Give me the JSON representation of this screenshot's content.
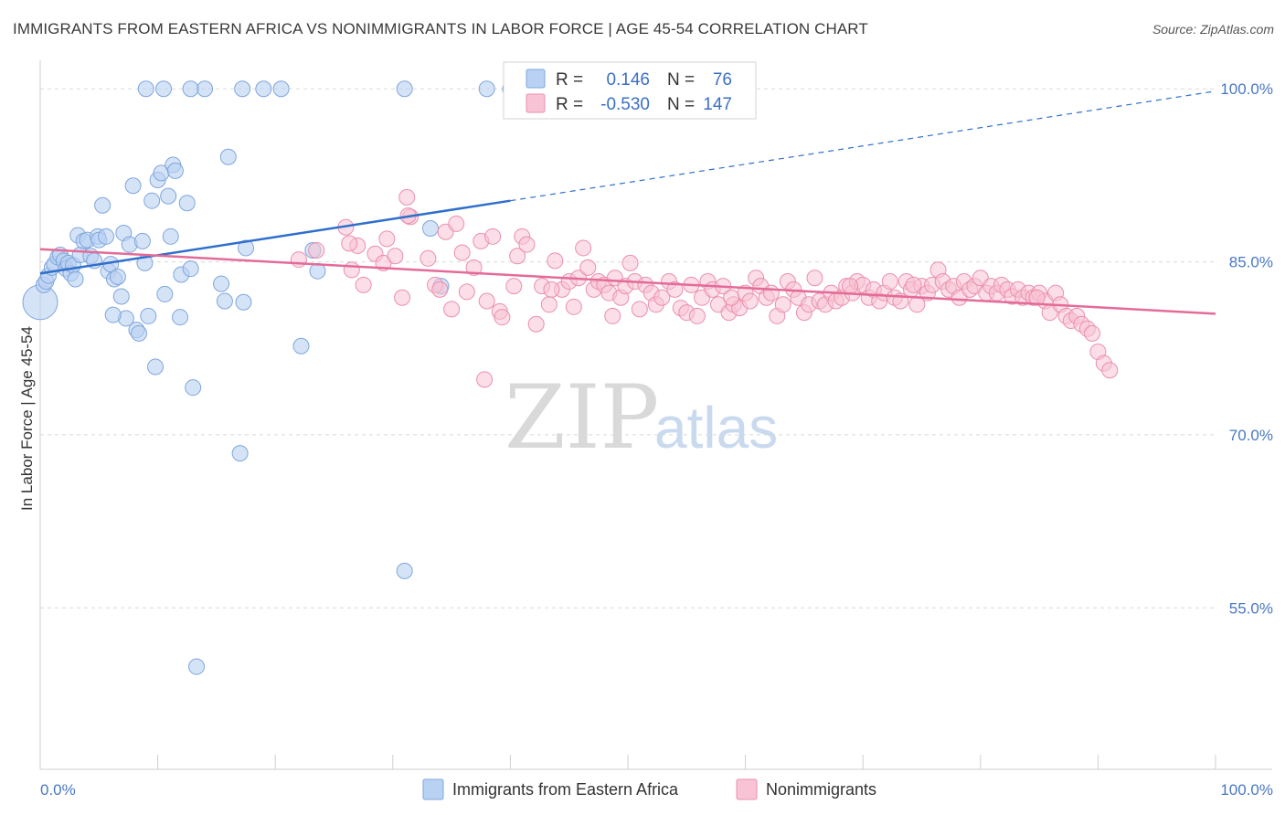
{
  "header": {
    "title": "IMMIGRANTS FROM EASTERN AFRICA VS NONIMMIGRANTS IN LABOR FORCE | AGE 45-54 CORRELATION CHART",
    "source": "Source: ZipAtlas.com"
  },
  "watermark": {
    "zip": "ZIP",
    "atlas": "atlas"
  },
  "colors": {
    "blue_fill": "#b9d1f2",
    "blue_stroke": "#7fa6dc",
    "blue_line": "#2f6fcc",
    "pink_fill": "#f8c3d4",
    "pink_stroke": "#eb8fae",
    "pink_line": "#e46b98",
    "grid": "#d9d9d9",
    "tick_label": "#4a78c2"
  },
  "legend": {
    "rows": [
      {
        "r_label": "R =",
        "r_value": "0.146",
        "n_label": "N =",
        "n_value": "76"
      },
      {
        "r_label": "R =",
        "r_value": "-0.530",
        "n_label": "N =",
        "n_value": "147"
      }
    ]
  },
  "bottom_legend": {
    "items": [
      {
        "label": "Immigrants from Eastern Africa"
      },
      {
        "label": "Nonimmigrants"
      }
    ]
  },
  "chart_data": {
    "type": "scatter",
    "title": "IMMIGRANTS FROM EASTERN AFRICA VS NONIMMIGRANTS IN LABOR FORCE | AGE 45-54 CORRELATION CHART",
    "xlabel": "",
    "ylabel": "In Labor Force | Age 45-54",
    "xlim": [
      0,
      100
    ],
    "ylim": [
      41,
      102
    ],
    "x_ticks": [
      0,
      100
    ],
    "x_tick_labels": [
      "0.0%",
      "100.0%"
    ],
    "y_ticks": [
      55,
      70,
      85,
      100
    ],
    "y_tick_labels": [
      "55.0%",
      "70.0%",
      "85.0%",
      "100.0%"
    ],
    "grid": true,
    "legend_position": "top-center",
    "series": [
      {
        "name": "Immigrants from Eastern Africa",
        "r": 0.146,
        "n": 76,
        "trend": {
          "x0": 0,
          "y0": 84.0,
          "x1": 40,
          "y1": 90.3,
          "dashed_to": {
            "x": 100,
            "y": 99.8
          }
        },
        "points": [
          [
            0.0,
            81.5
          ],
          [
            0.3,
            83.0
          ],
          [
            0.5,
            83.3
          ],
          [
            0.7,
            83.8
          ],
          [
            1.0,
            84.5
          ],
          [
            1.2,
            84.8
          ],
          [
            1.5,
            85.4
          ],
          [
            1.7,
            85.6
          ],
          [
            2.0,
            85.1
          ],
          [
            2.2,
            84.4
          ],
          [
            2.4,
            84.9
          ],
          [
            2.6,
            84.0
          ],
          [
            2.8,
            84.7
          ],
          [
            3.0,
            83.5
          ],
          [
            3.2,
            87.3
          ],
          [
            3.4,
            85.6
          ],
          [
            3.7,
            86.8
          ],
          [
            4.0,
            86.9
          ],
          [
            4.3,
            85.5
          ],
          [
            4.6,
            85.1
          ],
          [
            4.9,
            87.2
          ],
          [
            5.0,
            86.9
          ],
          [
            5.3,
            89.9
          ],
          [
            5.6,
            87.2
          ],
          [
            5.8,
            84.2
          ],
          [
            6.0,
            84.8
          ],
          [
            6.3,
            83.5
          ],
          [
            6.6,
            83.7
          ],
          [
            6.9,
            82.0
          ],
          [
            7.1,
            87.5
          ],
          [
            7.3,
            80.1
          ],
          [
            7.6,
            86.5
          ],
          [
            7.9,
            91.6
          ],
          [
            8.2,
            79.1
          ],
          [
            8.4,
            78.8
          ],
          [
            8.7,
            86.8
          ],
          [
            8.9,
            84.9
          ],
          [
            9.2,
            80.3
          ],
          [
            9.5,
            90.3
          ],
          [
            9.8,
            75.9
          ],
          [
            10.0,
            92.1
          ],
          [
            10.3,
            92.7
          ],
          [
            10.6,
            82.2
          ],
          [
            10.9,
            90.7
          ],
          [
            11.1,
            87.2
          ],
          [
            11.3,
            93.4
          ],
          [
            11.5,
            92.9
          ],
          [
            12.0,
            83.9
          ],
          [
            12.5,
            90.1
          ],
          [
            12.8,
            84.4
          ],
          [
            13.0,
            74.1
          ],
          [
            13.3,
            49.9
          ],
          [
            9.0,
            100.0
          ],
          [
            10.5,
            100.0
          ],
          [
            14.0,
            100.0
          ],
          [
            12.8,
            100.0
          ],
          [
            15.4,
            83.1
          ],
          [
            15.7,
            81.6
          ],
          [
            16.0,
            94.1
          ],
          [
            17.0,
            68.4
          ],
          [
            17.3,
            81.5
          ],
          [
            17.5,
            86.2
          ],
          [
            19.0,
            100.0
          ],
          [
            20.5,
            100.0
          ],
          [
            17.2,
            100.0
          ],
          [
            22.2,
            77.7
          ],
          [
            23.2,
            86.0
          ],
          [
            23.6,
            84.2
          ],
          [
            31.0,
            58.2
          ],
          [
            31.0,
            100.0
          ],
          [
            38.0,
            100.0
          ],
          [
            40.0,
            100.0
          ],
          [
            11.9,
            80.2
          ],
          [
            6.2,
            80.4
          ],
          [
            33.2,
            87.9
          ],
          [
            34.1,
            82.9
          ]
        ]
      },
      {
        "name": "Nonimmigrants",
        "r": -0.53,
        "n": 147,
        "trend": {
          "x0": 0,
          "y0": 86.1,
          "x1": 100,
          "y1": 80.5
        },
        "points": [
          [
            22.0,
            85.2
          ],
          [
            23.5,
            86.0
          ],
          [
            26.0,
            88.0
          ],
          [
            26.5,
            84.3
          ],
          [
            27.0,
            86.4
          ],
          [
            27.5,
            83.0
          ],
          [
            28.5,
            85.7
          ],
          [
            29.2,
            84.9
          ],
          [
            29.5,
            87.0
          ],
          [
            30.2,
            85.5
          ],
          [
            30.8,
            81.9
          ],
          [
            31.2,
            90.6
          ],
          [
            31.5,
            88.9
          ],
          [
            33.0,
            85.3
          ],
          [
            33.6,
            83.0
          ],
          [
            34.0,
            82.6
          ],
          [
            34.5,
            87.6
          ],
          [
            35.0,
            80.9
          ],
          [
            35.4,
            88.3
          ],
          [
            35.9,
            85.8
          ],
          [
            36.3,
            82.4
          ],
          [
            36.9,
            84.5
          ],
          [
            37.5,
            86.8
          ],
          [
            38.0,
            81.6
          ],
          [
            38.5,
            87.2
          ],
          [
            39.1,
            80.7
          ],
          [
            39.3,
            80.2
          ],
          [
            40.3,
            82.9
          ],
          [
            40.6,
            85.5
          ],
          [
            41.0,
            87.2
          ],
          [
            41.4,
            86.5
          ],
          [
            42.2,
            79.6
          ],
          [
            42.7,
            82.9
          ],
          [
            43.3,
            81.3
          ],
          [
            43.8,
            85.1
          ],
          [
            44.4,
            82.6
          ],
          [
            45.0,
            83.3
          ],
          [
            45.4,
            81.1
          ],
          [
            45.8,
            83.6
          ],
          [
            46.2,
            86.2
          ],
          [
            46.6,
            84.5
          ],
          [
            47.1,
            82.6
          ],
          [
            47.5,
            83.3
          ],
          [
            48.0,
            83.0
          ],
          [
            48.4,
            82.3
          ],
          [
            48.9,
            83.6
          ],
          [
            49.4,
            81.9
          ],
          [
            49.8,
            82.9
          ],
          [
            50.2,
            84.9
          ],
          [
            50.6,
            83.3
          ],
          [
            51.0,
            80.9
          ],
          [
            51.5,
            83.0
          ],
          [
            52.0,
            82.3
          ],
          [
            52.4,
            81.3
          ],
          [
            52.9,
            81.9
          ],
          [
            53.5,
            83.3
          ],
          [
            54.0,
            82.6
          ],
          [
            54.5,
            81.0
          ],
          [
            55.0,
            80.6
          ],
          [
            55.4,
            83.0
          ],
          [
            55.9,
            80.3
          ],
          [
            56.3,
            81.9
          ],
          [
            56.8,
            83.3
          ],
          [
            57.2,
            82.6
          ],
          [
            57.7,
            81.3
          ],
          [
            58.1,
            82.9
          ],
          [
            58.6,
            80.6
          ],
          [
            59.0,
            81.3
          ],
          [
            59.5,
            81.0
          ],
          [
            60.0,
            82.3
          ],
          [
            60.4,
            81.6
          ],
          [
            60.9,
            83.6
          ],
          [
            61.3,
            82.9
          ],
          [
            61.8,
            81.9
          ],
          [
            62.2,
            82.3
          ],
          [
            62.7,
            80.3
          ],
          [
            63.2,
            81.3
          ],
          [
            63.6,
            83.3
          ],
          [
            64.1,
            82.6
          ],
          [
            64.5,
            81.9
          ],
          [
            65.0,
            80.6
          ],
          [
            65.4,
            81.3
          ],
          [
            65.9,
            83.6
          ],
          [
            66.3,
            81.6
          ],
          [
            66.8,
            81.3
          ],
          [
            67.3,
            82.3
          ],
          [
            67.7,
            81.6
          ],
          [
            68.2,
            81.9
          ],
          [
            68.6,
            82.9
          ],
          [
            69.1,
            82.3
          ],
          [
            69.5,
            83.3
          ],
          [
            70.0,
            83.0
          ],
          [
            70.5,
            81.9
          ],
          [
            70.9,
            82.6
          ],
          [
            71.4,
            81.6
          ],
          [
            71.8,
            82.3
          ],
          [
            72.3,
            83.3
          ],
          [
            72.7,
            81.9
          ],
          [
            73.2,
            81.6
          ],
          [
            73.7,
            83.3
          ],
          [
            74.1,
            82.6
          ],
          [
            74.6,
            81.3
          ],
          [
            75.0,
            82.9
          ],
          [
            75.5,
            82.3
          ],
          [
            75.9,
            83.0
          ],
          [
            76.4,
            84.3
          ],
          [
            76.8,
            83.3
          ],
          [
            77.3,
            82.6
          ],
          [
            77.7,
            82.9
          ],
          [
            78.2,
            81.9
          ],
          [
            78.6,
            83.3
          ],
          [
            79.1,
            82.6
          ],
          [
            79.5,
            82.9
          ],
          [
            80.0,
            83.6
          ],
          [
            80.5,
            82.3
          ],
          [
            80.9,
            82.9
          ],
          [
            81.4,
            82.3
          ],
          [
            81.8,
            83.0
          ],
          [
            82.3,
            82.6
          ],
          [
            82.7,
            82.0
          ],
          [
            83.2,
            82.6
          ],
          [
            83.6,
            81.9
          ],
          [
            84.1,
            82.3
          ],
          [
            84.5,
            81.9
          ],
          [
            85.0,
            82.3
          ],
          [
            85.5,
            81.6
          ],
          [
            85.9,
            80.6
          ],
          [
            86.4,
            82.3
          ],
          [
            86.8,
            81.3
          ],
          [
            87.3,
            80.3
          ],
          [
            87.7,
            79.9
          ],
          [
            88.2,
            80.3
          ],
          [
            88.6,
            79.6
          ],
          [
            89.1,
            79.2
          ],
          [
            89.5,
            78.8
          ],
          [
            90.0,
            77.2
          ],
          [
            90.5,
            76.2
          ],
          [
            91.0,
            75.6
          ],
          [
            37.8,
            74.8
          ],
          [
            31.3,
            89.0
          ],
          [
            48.7,
            80.3
          ],
          [
            26.3,
            86.6
          ],
          [
            84.8,
            81.9
          ],
          [
            68.9,
            82.9
          ],
          [
            43.5,
            82.6
          ],
          [
            58.8,
            81.9
          ],
          [
            74.3,
            83.0
          ]
        ]
      }
    ]
  }
}
